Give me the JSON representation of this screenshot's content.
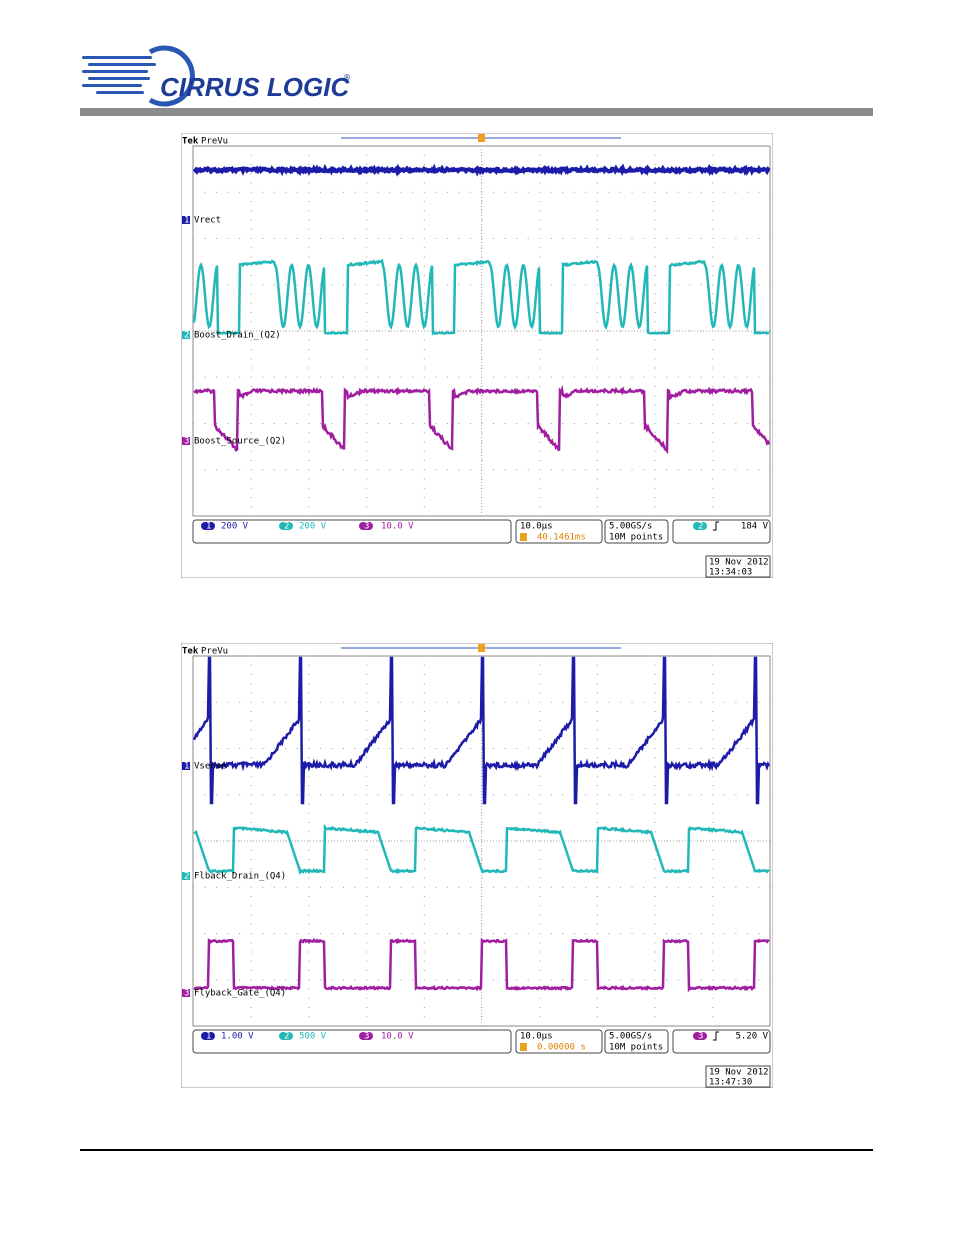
{
  "header": {
    "logo": "CIRRUS LOGIC",
    "mark": "®"
  },
  "scopes": [
    {
      "brand": "Tek",
      "mode": "PreVu",
      "channels": [
        {
          "number": "1",
          "label": "Vrect",
          "scale": "200 V"
        },
        {
          "number": "2",
          "label": "Boost_Drain_(Q2)",
          "scale": "200 V"
        },
        {
          "number": "3",
          "label": "Boost_Source_(Q2)",
          "scale": "10.0 V"
        }
      ],
      "timebase": "10.0µs",
      "delay": "40.1461ms",
      "sample_rate": "5.00GS/s",
      "record": "10M points",
      "trigger_channel": "2",
      "trigger_level": "184 V",
      "date": "19 Nov 2012",
      "time": "13:34:03"
    },
    {
      "brand": "Tek",
      "mode": "PreVu",
      "channels": [
        {
          "number": "1",
          "label": "Vsense",
          "scale": "1.00 V"
        },
        {
          "number": "2",
          "label": "Flback_Drain_(Q4)",
          "scale": "500 V"
        },
        {
          "number": "3",
          "label": "Flyback_Gate_(Q4)",
          "scale": "10.0 V"
        }
      ],
      "timebase": "10.0µs",
      "delay": "0.00000 s",
      "sample_rate": "5.00GS/s",
      "record": "10M points",
      "trigger_channel": "3",
      "trigger_level": "5.20 V",
      "date": "19 Nov 2012",
      "time": "13:47:30"
    }
  ]
}
